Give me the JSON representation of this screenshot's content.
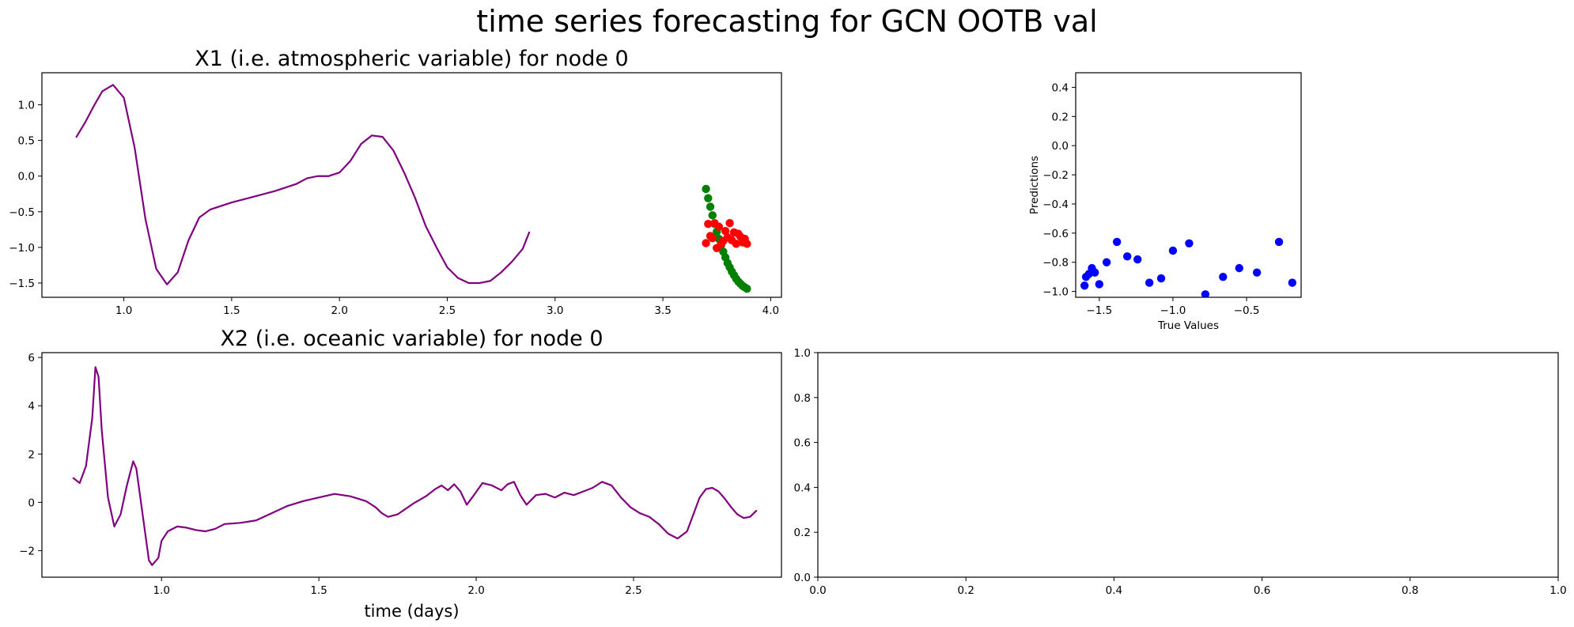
{
  "figure": {
    "suptitle": "time series forecasting for GCN OOTB val",
    "colors": {
      "history": "#800080",
      "truth": "#008000",
      "prediction": "#ff0000",
      "scatter": "#0000ff",
      "axes": "#000000",
      "background": "#ffffff"
    }
  },
  "chart_data": [
    {
      "id": "x1",
      "type": "line",
      "title": "X1 (i.e. atmospheric variable) for node 0",
      "xlabel": "",
      "ylabel": "",
      "xlim": [
        0.62,
        4.05
      ],
      "ylim": [
        -1.7,
        1.45
      ],
      "xticks": [
        1.0,
        1.5,
        2.0,
        2.5,
        3.0,
        3.5,
        4.0
      ],
      "xtick_labels": [
        "1.0",
        "1.5",
        "2.0",
        "2.5",
        "3.0",
        "3.5",
        "4.0"
      ],
      "yticks": [
        -1.5,
        -1.0,
        -0.5,
        0.0,
        0.5,
        1.0
      ],
      "ytick_labels": [
        "−1.5",
        "−1.0",
        "−0.5",
        "0.0",
        "0.5",
        "1.0"
      ],
      "grid": false,
      "series": [
        {
          "color": "#800080",
          "kind": "line",
          "x": [
            0.78,
            0.82,
            0.86,
            0.9,
            0.95,
            1.0,
            1.05,
            1.1,
            1.15,
            1.2,
            1.25,
            1.3,
            1.35,
            1.4,
            1.5,
            1.6,
            1.7,
            1.8,
            1.85,
            1.9,
            1.95,
            2.0,
            2.05,
            2.1,
            2.15,
            2.2,
            2.25,
            2.3,
            2.35,
            2.4,
            2.45,
            2.5,
            2.55,
            2.6,
            2.65,
            2.7,
            2.75,
            2.8,
            2.85,
            2.88
          ],
          "y": [
            0.55,
            0.75,
            0.98,
            1.19,
            1.28,
            1.1,
            0.4,
            -0.6,
            -1.3,
            -1.52,
            -1.35,
            -0.9,
            -0.58,
            -0.47,
            -0.37,
            -0.29,
            -0.21,
            -0.11,
            -0.03,
            0.0,
            0.0,
            0.05,
            0.21,
            0.45,
            0.57,
            0.55,
            0.36,
            0.05,
            -0.3,
            -0.7,
            -1.0,
            -1.28,
            -1.43,
            -1.5,
            -1.5,
            -1.47,
            -1.35,
            -1.2,
            -1.02,
            -0.79
          ]
        },
        {
          "color": "#008000",
          "kind": "scatter",
          "x": [
            3.7,
            3.71,
            3.72,
            3.73,
            3.74,
            3.75,
            3.76,
            3.77,
            3.78,
            3.79,
            3.8,
            3.81,
            3.82,
            3.83,
            3.84,
            3.85,
            3.86,
            3.87,
            3.88,
            3.89
          ],
          "y": [
            -0.18,
            -0.31,
            -0.43,
            -0.55,
            -0.67,
            -0.78,
            -0.88,
            -0.97,
            -1.06,
            -1.14,
            -1.22,
            -1.28,
            -1.34,
            -1.39,
            -1.44,
            -1.48,
            -1.51,
            -1.54,
            -1.56,
            -1.58
          ]
        },
        {
          "color": "#ff0000",
          "kind": "scatter",
          "x": [
            3.7,
            3.71,
            3.72,
            3.73,
            3.74,
            3.75,
            3.76,
            3.77,
            3.78,
            3.79,
            3.8,
            3.81,
            3.82,
            3.83,
            3.84,
            3.85,
            3.86,
            3.87,
            3.88,
            3.89
          ],
          "y": [
            -0.94,
            -0.67,
            -0.84,
            -0.87,
            -0.66,
            -1.01,
            -0.71,
            -0.95,
            -0.91,
            -0.77,
            -0.86,
            -0.66,
            -0.9,
            -0.79,
            -0.95,
            -0.81,
            -0.85,
            -0.93,
            -0.88,
            -0.95
          ]
        }
      ]
    },
    {
      "id": "scatter",
      "type": "scatter",
      "title": "",
      "xlabel": "True Values",
      "ylabel": "Predictions",
      "xlim": [
        -1.66,
        -0.13
      ],
      "ylim": [
        -1.04,
        0.5
      ],
      "xticks": [
        -1.5,
        -1.0,
        -0.5
      ],
      "xtick_labels": [
        "−1.5",
        "−1.0",
        "−0.5"
      ],
      "yticks": [
        -1.0,
        -0.8,
        -0.6,
        -0.4,
        -0.2,
        0.0,
        0.2,
        0.4
      ],
      "ytick_labels": [
        "−1.0",
        "−0.8",
        "−0.6",
        "−0.4",
        "−0.2",
        "0.0",
        "0.2",
        "0.4"
      ],
      "grid": false,
      "series": [
        {
          "color": "#0000ff",
          "kind": "scatter",
          "x": [
            -1.6,
            -1.59,
            -1.57,
            -1.55,
            -1.53,
            -1.5,
            -1.45,
            -1.38,
            -1.31,
            -1.24,
            -1.16,
            -1.08,
            -1.0,
            -0.89,
            -0.78,
            -0.66,
            -0.55,
            -0.43,
            -0.28,
            -0.19
          ],
          "y": [
            -0.96,
            -0.9,
            -0.88,
            -0.84,
            -0.87,
            -0.95,
            -0.8,
            -0.66,
            -0.76,
            -0.78,
            -0.94,
            -0.91,
            -0.72,
            -0.67,
            -1.02,
            -0.9,
            -0.84,
            -0.87,
            -0.66,
            -0.94
          ]
        }
      ]
    },
    {
      "id": "x2",
      "type": "line",
      "title": "X2 (i.e. oceanic variable) for node 0",
      "xlabel": "time (days)",
      "ylabel": "",
      "xlim": [
        0.62,
        2.97
      ],
      "ylim": [
        -3.1,
        6.2
      ],
      "xticks": [
        1.0,
        1.5,
        2.0,
        2.5
      ],
      "xtick_labels": [
        "1.0",
        "1.5",
        "2.0",
        "2.5"
      ],
      "yticks": [
        -2,
        0,
        2,
        4,
        6
      ],
      "ytick_labels": [
        "−2",
        "0",
        "2",
        "4",
        "6"
      ],
      "grid": false,
      "series": [
        {
          "color": "#800080",
          "kind": "line",
          "x": [
            0.72,
            0.74,
            0.76,
            0.78,
            0.79,
            0.8,
            0.81,
            0.83,
            0.85,
            0.87,
            0.89,
            0.91,
            0.92,
            0.94,
            0.96,
            0.97,
            0.99,
            1.0,
            1.02,
            1.05,
            1.08,
            1.11,
            1.14,
            1.17,
            1.2,
            1.25,
            1.3,
            1.35,
            1.4,
            1.45,
            1.5,
            1.55,
            1.6,
            1.65,
            1.68,
            1.7,
            1.72,
            1.75,
            1.8,
            1.84,
            1.87,
            1.89,
            1.91,
            1.93,
            1.95,
            1.97,
            1.99,
            2.02,
            2.05,
            2.08,
            2.1,
            2.12,
            2.14,
            2.16,
            2.19,
            2.22,
            2.25,
            2.28,
            2.31,
            2.34,
            2.37,
            2.4,
            2.43,
            2.46,
            2.49,
            2.52,
            2.55,
            2.58,
            2.61,
            2.64,
            2.67,
            2.69,
            2.71,
            2.73,
            2.75,
            2.77,
            2.79,
            2.81,
            2.83,
            2.85,
            2.87,
            2.89
          ],
          "y": [
            1.0,
            0.8,
            1.5,
            3.5,
            5.6,
            5.2,
            3.0,
            0.2,
            -1.0,
            -0.5,
            0.7,
            1.7,
            1.4,
            -0.5,
            -2.4,
            -2.6,
            -2.3,
            -1.6,
            -1.2,
            -1.0,
            -1.05,
            -1.15,
            -1.2,
            -1.1,
            -0.9,
            -0.85,
            -0.75,
            -0.45,
            -0.15,
            0.05,
            0.2,
            0.35,
            0.25,
            0.05,
            -0.2,
            -0.45,
            -0.6,
            -0.5,
            -0.05,
            0.25,
            0.55,
            0.7,
            0.5,
            0.75,
            0.45,
            -0.1,
            0.25,
            0.8,
            0.7,
            0.5,
            0.75,
            0.85,
            0.3,
            -0.1,
            0.3,
            0.35,
            0.2,
            0.4,
            0.3,
            0.45,
            0.6,
            0.85,
            0.7,
            0.2,
            -0.2,
            -0.45,
            -0.6,
            -0.9,
            -1.3,
            -1.5,
            -1.2,
            -0.5,
            0.2,
            0.55,
            0.6,
            0.45,
            0.15,
            -0.2,
            -0.5,
            -0.65,
            -0.6,
            -0.35
          ]
        }
      ]
    },
    {
      "id": "empty",
      "type": "line",
      "title": "",
      "xlabel": "",
      "ylabel": "",
      "xlim": [
        0.0,
        1.0
      ],
      "ylim": [
        0.0,
        1.0
      ],
      "xticks": [
        0.0,
        0.2,
        0.4,
        0.6,
        0.8,
        1.0
      ],
      "xtick_labels": [
        "0.0",
        "0.2",
        "0.4",
        "0.6",
        "0.8",
        "1.0"
      ],
      "yticks": [
        0.0,
        0.2,
        0.4,
        0.6,
        0.8,
        1.0
      ],
      "ytick_labels": [
        "0.0",
        "0.2",
        "0.4",
        "0.6",
        "0.8",
        "1.0"
      ],
      "grid": false,
      "series": []
    }
  ]
}
